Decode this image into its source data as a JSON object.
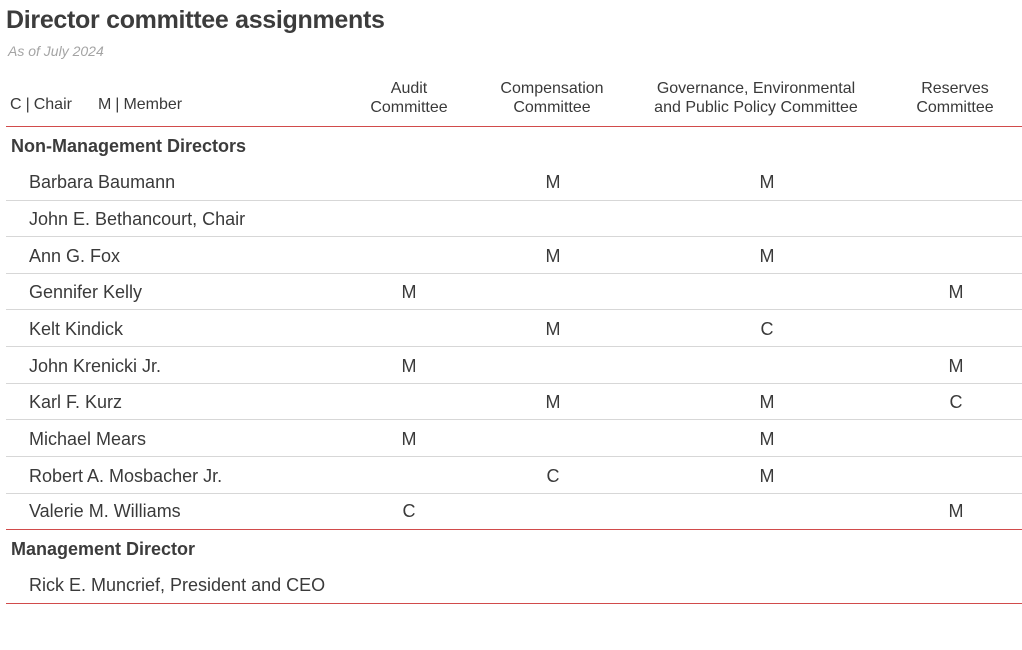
{
  "title": "Director committee assignments",
  "subtitle": "As of July 2024",
  "legend": {
    "c_code": "C",
    "c_label": "Chair",
    "m_code": "M",
    "m_label": "Member",
    "separator": "|"
  },
  "columns": [
    {
      "line1": "Audit",
      "line2": "Committee"
    },
    {
      "line1": "Compensation",
      "line2": "Committee"
    },
    {
      "line1": "Governance, Environmental",
      "line2": "and Public Policy Committee"
    },
    {
      "line1": "Reserves",
      "line2": "Committee"
    }
  ],
  "sections": [
    {
      "label": "Non-Management Directors",
      "rows": [
        {
          "name": "Barbara Baumann",
          "cells": [
            "",
            "M",
            "M",
            ""
          ]
        },
        {
          "name": "John E. Bethancourt, Chair",
          "cells": [
            "",
            "",
            "",
            ""
          ]
        },
        {
          "name": "Ann G. Fox",
          "cells": [
            "",
            "M",
            "M",
            ""
          ]
        },
        {
          "name": "Gennifer Kelly",
          "cells": [
            "M",
            "",
            "",
            "M"
          ]
        },
        {
          "name": "Kelt Kindick",
          "cells": [
            "",
            "M",
            "C",
            ""
          ]
        },
        {
          "name": "John Krenicki Jr.",
          "cells": [
            "M",
            "",
            "",
            "M"
          ]
        },
        {
          "name": "Karl F. Kurz",
          "cells": [
            "",
            "M",
            "M",
            "C"
          ]
        },
        {
          "name": "Michael Mears",
          "cells": [
            "M",
            "",
            "M",
            ""
          ]
        },
        {
          "name": "Robert A. Mosbacher Jr.",
          "cells": [
            "",
            "C",
            "M",
            ""
          ]
        },
        {
          "name": "Valerie M. Williams",
          "cells": [
            "C",
            "",
            "",
            "M"
          ]
        }
      ]
    },
    {
      "label": "Management Director",
      "rows": [
        {
          "name": "Rick E. Muncrief, President and CEO",
          "cells": [
            "",
            "",
            "",
            ""
          ]
        }
      ]
    }
  ]
}
